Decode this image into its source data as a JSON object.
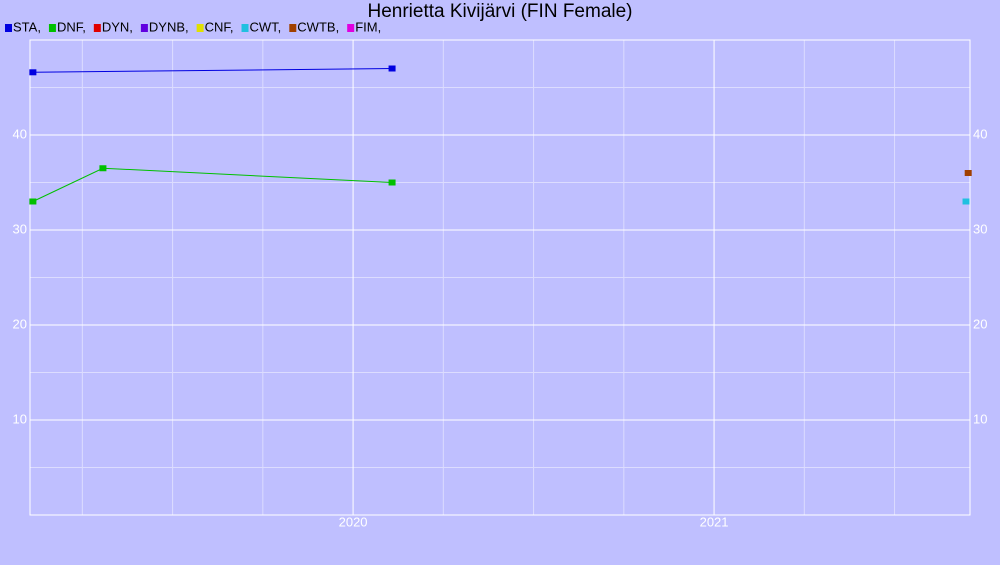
{
  "chart_data": {
    "type": "line",
    "title": "Henrietta Kivijärvi (FIN Female)",
    "xlim": [
      2019.105,
      2021.709
    ],
    "xticks": [
      2020,
      2021
    ],
    "ylim": [
      0,
      50
    ],
    "yticks": [
      10,
      20,
      30,
      40
    ],
    "grid": true,
    "series": [
      {
        "name": "STA,",
        "color": "#0000e0",
        "x": [
          2019.113,
          2020.108
        ],
        "values": [
          46.6,
          47.0
        ]
      },
      {
        "name": "DNF,",
        "color": "#00c000",
        "x": [
          2019.113,
          2019.307,
          2020.108
        ],
        "values": [
          33.0,
          36.5,
          35.0
        ]
      },
      {
        "name": "DYN,",
        "color": "#e00000",
        "x": [],
        "values": []
      },
      {
        "name": "DYNB,",
        "color": "#6000e0",
        "x": [],
        "values": []
      },
      {
        "name": "CNF,",
        "color": "#e0e000",
        "x": [],
        "values": []
      },
      {
        "name": "CWT,",
        "color": "#20c0e0",
        "x": [
          2021.698
        ],
        "values": [
          33.0
        ]
      },
      {
        "name": "CWTB,",
        "color": "#a04000",
        "x": [
          2021.704
        ],
        "values": [
          36.0
        ]
      },
      {
        "name": "FIM,",
        "color": "#e000e0",
        "x": [],
        "values": []
      }
    ]
  }
}
